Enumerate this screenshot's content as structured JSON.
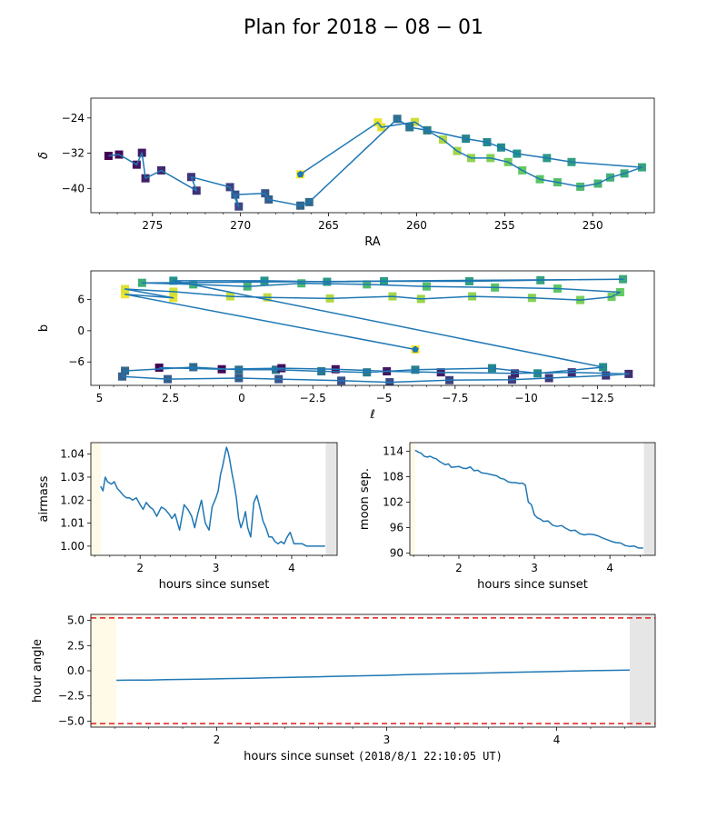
{
  "figure": {
    "title": "Plan for $2018-08-01$",
    "title_parts": [
      "Plan for 2018",
      "08",
      "01"
    ]
  },
  "colors": {
    "line": "#1f77b4",
    "dawn": "#e6e6e6",
    "dusk": "#fff9e8",
    "limit": "#e41a1c",
    "viridis": [
      "#440154",
      "#3b528b",
      "#21918c",
      "#5ec962",
      "#fde725"
    ]
  },
  "chart_data": [
    {
      "id": "radec",
      "type": "scatter",
      "xlabel": "RA",
      "ylabel": "δ",
      "xlim": [
        278.5,
        246.5
      ],
      "ylim": [
        -45.5,
        -19.5
      ],
      "xticks": [
        275,
        270,
        265,
        260,
        255,
        250
      ],
      "yticks": [
        -24,
        -32,
        -40
      ],
      "start_marker": [
        266.6,
        -36.8
      ],
      "series": [
        {
          "name": "",
          "values": [
            [
              266.6,
              -36.8
            ],
            [
              262.2,
              -25.0
            ],
            [
              262.0,
              -26.1
            ],
            [
              260.1,
              -24.9
            ],
            [
              259.4,
              -26.8
            ],
            [
              258.5,
              -28.9
            ],
            [
              257.7,
              -31.5
            ],
            [
              256.9,
              -33.1
            ],
            [
              255.8,
              -33.1
            ],
            [
              254.8,
              -34.0
            ],
            [
              254.0,
              -35.9
            ],
            [
              253.0,
              -37.9
            ],
            [
              252.0,
              -38.6
            ],
            [
              250.7,
              -39.6
            ],
            [
              249.7,
              -38.9
            ],
            [
              249.0,
              -37.5
            ],
            [
              248.2,
              -36.6
            ],
            [
              247.2,
              -35.2
            ],
            [
              251.2,
              -34.0
            ],
            [
              252.6,
              -33.1
            ],
            [
              254.3,
              -32.1
            ],
            [
              255.2,
              -30.7
            ],
            [
              256.0,
              -29.5
            ],
            [
              257.2,
              -28.7
            ],
            [
              259.4,
              -26.8
            ],
            [
              260.4,
              -26.1
            ],
            [
              261.1,
              -24.2
            ],
            [
              266.1,
              -43.1
            ],
            [
              266.6,
              -43.9
            ],
            [
              268.4,
              -42.5
            ],
            [
              268.6,
              -41.1
            ],
            [
              270.3,
              -41.4
            ],
            [
              270.1,
              -44.1
            ],
            [
              270.6,
              -39.7
            ],
            [
              272.8,
              -37.4
            ],
            [
              272.5,
              -40.5
            ],
            [
              274.5,
              -35.9
            ],
            [
              275.4,
              -37.7
            ],
            [
              275.6,
              -31.9
            ],
            [
              275.9,
              -34.6
            ],
            [
              276.9,
              -32.3
            ],
            [
              277.5,
              -32.6
            ]
          ]
        }
      ]
    },
    {
      "id": "galactic",
      "type": "scatter",
      "xlabel": "ℓ",
      "ylabel": "b",
      "xlim": [
        5.3,
        -14.5
      ],
      "ylim": [
        -10.5,
        11.5
      ],
      "xticks": [
        5.0,
        2.5,
        0.0,
        -2.5,
        -5.0,
        -7.5,
        -10.0,
        -12.5
      ],
      "yticks": [
        6,
        0,
        -6
      ],
      "start_marker": [
        -6.1,
        -3.6
      ],
      "series": [
        {
          "name": "",
          "values": [
            [
              -6.1,
              -3.6
            ],
            [
              4.1,
              7.0
            ],
            [
              2.4,
              6.3
            ],
            [
              4.1,
              8.0
            ],
            [
              2.4,
              7.5
            ],
            [
              0.4,
              6.6
            ],
            [
              -0.9,
              6.4
            ],
            [
              -3.1,
              6.2
            ],
            [
              -5.3,
              6.6
            ],
            [
              -6.3,
              6.1
            ],
            [
              -8.1,
              6.6
            ],
            [
              -10.2,
              6.3
            ],
            [
              -11.9,
              5.9
            ],
            [
              -13.0,
              6.5
            ],
            [
              -13.3,
              7.4
            ],
            [
              -11.1,
              8.1
            ],
            [
              -8.9,
              8.3
            ],
            [
              -6.5,
              8.5
            ],
            [
              -4.4,
              8.9
            ],
            [
              -2.1,
              9.1
            ],
            [
              -0.2,
              8.5
            ],
            [
              1.7,
              8.9
            ],
            [
              3.5,
              9.2
            ],
            [
              -13.4,
              9.9
            ],
            [
              -10.5,
              9.7
            ],
            [
              -8.0,
              9.5
            ],
            [
              -5.0,
              9.5
            ],
            [
              -3.0,
              9.4
            ],
            [
              -0.8,
              9.6
            ],
            [
              2.4,
              9.6
            ],
            [
              -12.7,
              -7.0
            ],
            [
              -10.4,
              -8.2
            ],
            [
              -8.8,
              -7.2
            ],
            [
              -6.1,
              -7.5
            ],
            [
              -4.4,
              -8.0
            ],
            [
              -2.8,
              -7.8
            ],
            [
              -1.2,
              -7.5
            ],
            [
              0.1,
              -7.5
            ],
            [
              1.7,
              -7.0
            ],
            [
              4.1,
              -7.7
            ],
            [
              4.2,
              -8.8
            ],
            [
              2.6,
              -9.3
            ],
            [
              0.1,
              -9.1
            ],
            [
              -1.3,
              -9.3
            ],
            [
              -3.5,
              -9.6
            ],
            [
              -5.2,
              -9.9
            ],
            [
              -7.3,
              -9.5
            ],
            [
              -9.5,
              -9.4
            ],
            [
              -10.8,
              -9.1
            ],
            [
              -12.8,
              -8.6
            ],
            [
              -13.6,
              -8.3
            ],
            [
              -11.6,
              -8.0
            ],
            [
              -9.6,
              -8.2
            ],
            [
              -7.0,
              -8.0
            ],
            [
              -5.1,
              -7.8
            ],
            [
              -3.3,
              -7.4
            ],
            [
              -1.4,
              -7.2
            ],
            [
              0.7,
              -7.4
            ],
            [
              2.9,
              -7.1
            ]
          ]
        }
      ]
    },
    {
      "id": "airmass",
      "type": "line",
      "xlabel": "hours since sunset",
      "ylabel": "airmass",
      "xlim": [
        1.35,
        4.6
      ],
      "ylim": [
        0.996,
        1.045
      ],
      "xticks": [
        2,
        3,
        4
      ],
      "ytick_labels": [
        "1.04",
        "1.03",
        "1.02",
        "1.01",
        "1.00"
      ],
      "ytick_values": [
        1.04,
        1.03,
        1.02,
        1.01,
        1.0
      ],
      "dusk_span": [
        1.35,
        1.48
      ],
      "dawn_span": [
        4.45,
        4.6
      ],
      "series": [
        {
          "name": "",
          "x": [
            1.48,
            1.51,
            1.54,
            1.57,
            1.62,
            1.66,
            1.7,
            1.73,
            1.78,
            1.82,
            1.86,
            1.9,
            1.95,
            2.0,
            2.04,
            2.08,
            2.13,
            2.17,
            2.22,
            2.28,
            2.33,
            2.38,
            2.42,
            2.46,
            2.52,
            2.58,
            2.63,
            2.68,
            2.72,
            2.76,
            2.81,
            2.86,
            2.91,
            2.95,
            3.0,
            3.03,
            3.06,
            3.09,
            3.12,
            3.14,
            3.16,
            3.18,
            3.21,
            3.24,
            3.27,
            3.3,
            3.33,
            3.36,
            3.39,
            3.42,
            3.46,
            3.5,
            3.54,
            3.58,
            3.62,
            3.66,
            3.7,
            3.74,
            3.78,
            3.82,
            3.86,
            3.9,
            3.94,
            3.98,
            4.03,
            4.08,
            4.14,
            4.2,
            4.26,
            4.32,
            4.38,
            4.44
          ],
          "values": [
            1.026,
            1.024,
            1.03,
            1.028,
            1.027,
            1.028,
            1.025,
            1.024,
            1.022,
            1.021,
            1.021,
            1.02,
            1.021,
            1.018,
            1.016,
            1.019,
            1.017,
            1.016,
            1.013,
            1.017,
            1.016,
            1.014,
            1.012,
            1.014,
            1.007,
            1.018,
            1.016,
            1.013,
            1.008,
            1.014,
            1.02,
            1.01,
            1.007,
            1.017,
            1.021,
            1.024,
            1.031,
            1.035,
            1.04,
            1.043,
            1.041,
            1.038,
            1.032,
            1.027,
            1.021,
            1.012,
            1.008,
            1.011,
            1.015,
            1.008,
            1.004,
            1.019,
            1.022,
            1.017,
            1.011,
            1.008,
            1.004,
            1.004,
            1.002,
            1.001,
            1.002,
            1.001,
            1.004,
            1.006,
            1.001,
            1.001,
            1.001,
            1.0,
            1.0,
            1.0,
            1.0,
            1.0
          ]
        }
      ]
    },
    {
      "id": "moonsep",
      "type": "line",
      "xlabel": "hours since sunset",
      "ylabel": "moon sep.",
      "xlim": [
        1.35,
        4.6
      ],
      "ylim": [
        89.5,
        116.0
      ],
      "xticks": [
        2,
        3,
        4
      ],
      "yticks": [
        114,
        108,
        102,
        96,
        90
      ],
      "dusk_span": [
        1.35,
        1.42
      ],
      "dawn_span": [
        4.45,
        4.6
      ],
      "series": [
        {
          "name": "",
          "x": [
            1.42,
            1.46,
            1.5,
            1.54,
            1.58,
            1.62,
            1.66,
            1.7,
            1.74,
            1.78,
            1.82,
            1.86,
            1.9,
            1.95,
            2.0,
            2.05,
            2.1,
            2.15,
            2.2,
            2.25,
            2.3,
            2.35,
            2.4,
            2.45,
            2.5,
            2.55,
            2.6,
            2.65,
            2.7,
            2.75,
            2.8,
            2.84,
            2.88,
            2.92,
            2.96,
            3.0,
            3.04,
            3.08,
            3.12,
            3.18,
            3.24,
            3.3,
            3.36,
            3.42,
            3.48,
            3.54,
            3.6,
            3.66,
            3.72,
            3.78,
            3.84,
            3.9,
            3.96,
            4.02,
            4.08,
            4.14,
            4.2,
            4.26,
            4.32,
            4.38,
            4.44
          ],
          "values": [
            114.2,
            113.8,
            113.5,
            112.8,
            112.6,
            112.8,
            112.4,
            112.2,
            111.6,
            111.2,
            110.8,
            111.0,
            110.2,
            110.3,
            110.4,
            110.0,
            109.9,
            110.3,
            109.4,
            109.5,
            108.9,
            108.8,
            108.6,
            108.4,
            108.2,
            107.6,
            107.4,
            106.8,
            106.6,
            106.6,
            106.4,
            106.5,
            106.0,
            102.0,
            101.4,
            99.0,
            98.3,
            98.0,
            97.5,
            97.6,
            96.6,
            96.3,
            96.5,
            95.8,
            95.3,
            95.4,
            94.6,
            94.3,
            94.5,
            94.4,
            94.1,
            93.6,
            93.2,
            92.8,
            92.5,
            92.4,
            91.8,
            91.6,
            91.7,
            91.2,
            91.2
          ]
        }
      ]
    },
    {
      "id": "hourangle",
      "type": "line",
      "xlabel": "hours since sunset",
      "xlabel_utc": "(2018/8/1 22:10:05 UT)",
      "ylabel": "hour angle",
      "xlim": [
        1.26,
        4.58
      ],
      "ylim": [
        -5.6,
        5.6
      ],
      "xticks": [
        2,
        3,
        4
      ],
      "yticks": [
        5.0,
        2.5,
        0.0,
        -2.5,
        -5.0
      ],
      "ytick_labels": [
        "5.0",
        "2.5",
        "0.0",
        "−2.5",
        "−5.0"
      ],
      "limits": [
        5.25,
        -5.25
      ],
      "dusk_span": [
        1.26,
        1.41
      ],
      "dawn_span": [
        4.43,
        4.58
      ],
      "series": [
        {
          "name": "",
          "x": [
            1.41,
            1.5,
            1.6,
            1.7,
            1.8,
            1.9,
            2.0,
            2.1,
            2.2,
            2.3,
            2.4,
            2.5,
            2.6,
            2.7,
            2.8,
            2.9,
            3.0,
            3.1,
            3.2,
            3.3,
            3.4,
            3.5,
            3.6,
            3.7,
            3.8,
            3.9,
            4.0,
            4.1,
            4.2,
            4.3,
            4.43
          ],
          "values": [
            -0.95,
            -0.92,
            -0.92,
            -0.88,
            -0.86,
            -0.83,
            -0.8,
            -0.77,
            -0.74,
            -0.7,
            -0.67,
            -0.63,
            -0.6,
            -0.55,
            -0.52,
            -0.49,
            -0.45,
            -0.4,
            -0.35,
            -0.32,
            -0.28,
            -0.25,
            -0.22,
            -0.17,
            -0.14,
            -0.1,
            -0.06,
            -0.03,
            0.01,
            0.04,
            0.06
          ]
        }
      ]
    }
  ]
}
